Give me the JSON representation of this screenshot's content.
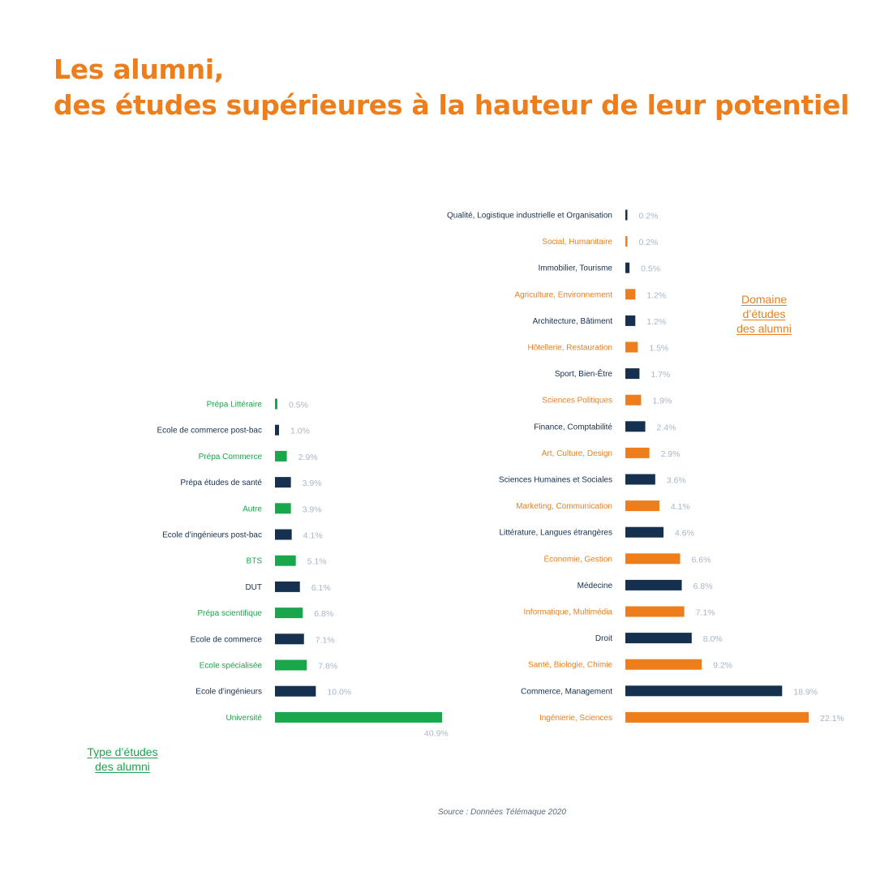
{
  "colors": {
    "orange": "#ee7e1b",
    "navy": "#16304f",
    "green": "#1aa64a",
    "value_label": "#a8b6c8"
  },
  "title": {
    "line1": "Les alumni,",
    "line2": "des études supérieures à la hauteur de leur potentiel"
  },
  "source": "Source : Données Télémaque 2020",
  "chart_data": [
    {
      "type": "bar",
      "orientation": "horizontal",
      "title": "",
      "legend": {
        "line1": "Domaine",
        "line2": "d’études",
        "line3": "des alumni"
      },
      "legend_position": "right",
      "xlim": [
        0,
        22.1
      ],
      "grid": false,
      "unit": "%",
      "categories": [
        "Qualité, Logistique industrielle et Organisation",
        "Social, Humanitaire",
        "Immobilier, Tourisme",
        "Agriculture, Environnement",
        "Architecture, Bâtiment",
        "Hôtellerie, Restauration",
        "Sport, Bien-Être",
        "Sciences Politiques",
        "Finance, Comptabilité",
        "Art, Culture, Design",
        "Sciences Humaines et Sociales",
        "Marketing, Communication",
        "Littérature, Langues étrangères",
        "Économie, Gestion",
        "Médecine",
        "Informatique, Multimédia",
        "Droit",
        "Santé, Biologie, Chimie",
        "Commerce, Management",
        "Ingénierie, Sciences"
      ],
      "values": [
        0.2,
        0.2,
        0.5,
        1.2,
        1.2,
        1.5,
        1.7,
        1.9,
        2.4,
        2.9,
        3.6,
        4.1,
        4.6,
        6.6,
        6.8,
        7.1,
        8.0,
        9.2,
        18.9,
        22.1
      ],
      "value_labels": [
        "0.2%",
        "0.2%",
        "0.5%",
        "1.2%",
        "1.2%",
        "1.5%",
        "1.7%",
        "1.9%",
        "2.4%",
        "2.9%",
        "3.6%",
        "4.1%",
        "4.6%",
        "6.6%",
        "6.8%",
        "7.1%",
        "8.0%",
        "9.2%",
        "18.9%",
        "22.1%"
      ],
      "bar_colors": [
        "navy",
        "orange",
        "navy",
        "orange",
        "navy",
        "orange",
        "navy",
        "orange",
        "navy",
        "orange",
        "navy",
        "orange",
        "navy",
        "orange",
        "navy",
        "orange",
        "navy",
        "orange",
        "navy",
        "orange"
      ]
    },
    {
      "type": "bar",
      "orientation": "horizontal",
      "title": "",
      "legend": {
        "line1": "Type d’études",
        "line2": "des alumni"
      },
      "legend_position": "bottom-left",
      "xlim": [
        0,
        40.9
      ],
      "grid": false,
      "unit": "%",
      "categories": [
        "Prépa Littéraire",
        "Ecole de commerce post-bac",
        "Prépa Commerce",
        "Prépa études de santé",
        "Autre",
        "Ecole d’ingénieurs post-bac",
        "BTS",
        "DUT",
        "Prépa scientifique",
        "Ecole de commerce",
        "Ecole spécialisée",
        "Ecole d’ingénieurs",
        "Université"
      ],
      "values": [
        0.5,
        1.0,
        2.9,
        3.9,
        3.9,
        4.1,
        5.1,
        6.1,
        6.8,
        7.1,
        7.8,
        10.0,
        40.9
      ],
      "value_labels": [
        "0.5%",
        "1.0%",
        "2.9%",
        "3.9%",
        "3.9%",
        "4.1%",
        "5.1%",
        "6.1%",
        "6.8%",
        "7.1%",
        "7.8%",
        "10.0%",
        "40.9%"
      ],
      "bar_colors": [
        "green",
        "navy",
        "green",
        "navy",
        "green",
        "navy",
        "green",
        "navy",
        "green",
        "navy",
        "green",
        "navy",
        "green"
      ]
    }
  ]
}
